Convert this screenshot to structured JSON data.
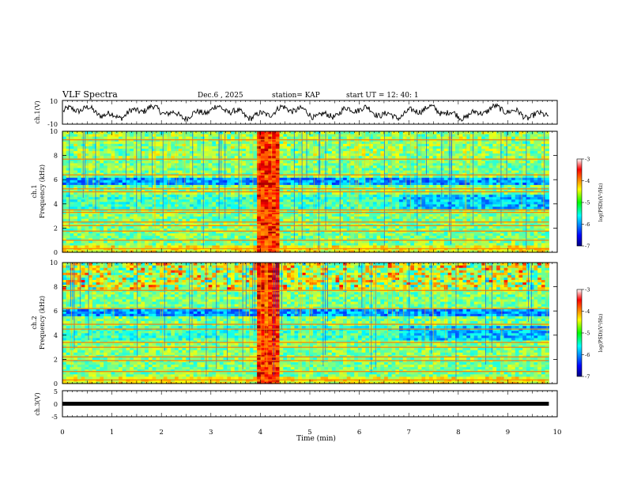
{
  "header": {
    "title": "VLF Spectra",
    "date": "Dec.6 , 2025",
    "station": "station= KAP",
    "start_time": "start UT =  12: 40: 1"
  },
  "chart_data": [
    {
      "type": "line",
      "name": "ch1-waveform",
      "ylabel": "ch.1(V)",
      "ylim": [
        -10,
        10
      ],
      "y_tick_labels": [
        "10",
        "-10"
      ],
      "xlim": [
        0,
        10
      ],
      "data_end_min": 9.83,
      "description_of_series": "noisy broadband waveform oscillating roughly between -5 and 5 V"
    },
    {
      "type": "heatmap",
      "name": "ch1-spectrogram",
      "ylabel": "ch.1\nFrequency (kHz)",
      "ylim": [
        0,
        10
      ],
      "y_ticks": [
        0,
        2,
        4,
        6,
        8,
        10
      ],
      "xlim": [
        0,
        10
      ],
      "data_end_min": 9.83,
      "colorbar": {
        "label": "log(PSD)(V²/Hz)",
        "range": [
          -7,
          -3
        ],
        "ticks": [
          -3,
          -4,
          -5,
          -6,
          -7
        ]
      },
      "bands_khz": [
        0.3,
        1.0,
        1.75,
        2.2,
        2.5,
        3.3,
        3.5,
        5.0,
        5.25,
        6.4,
        7.7,
        9.3
      ],
      "burst_min": [
        4.0,
        4.35
      ]
    },
    {
      "type": "heatmap",
      "name": "ch2-spectrogram",
      "ylabel": "ch.2\nFrequency (kHz)",
      "ylim": [
        0,
        10
      ],
      "y_ticks": [
        0,
        2,
        4,
        6,
        8,
        10
      ],
      "xlim": [
        0,
        10
      ],
      "data_end_min": 9.83,
      "colorbar": {
        "label": "log(PSD)(V²/Hz)",
        "range": [
          -7,
          -3
        ],
        "ticks": [
          -3,
          -4,
          -5,
          -6,
          -7
        ]
      },
      "bands_khz": [
        0.3,
        1.0,
        1.9,
        2.2,
        3.0,
        3.4,
        4.5,
        4.9,
        6.2,
        7.7
      ],
      "burst_min": [
        4.0,
        4.35
      ]
    },
    {
      "type": "line",
      "name": "ch3-waveform",
      "ylabel": "ch.3(V)",
      "ylim": [
        -5,
        5
      ],
      "y_tick_labels": [
        "5",
        "0",
        "-5"
      ],
      "xlim": [
        0,
        10
      ],
      "data_end_min": 9.83,
      "description_of_series": "thick flat trace near 0 V"
    },
    {
      "type": "axis",
      "name": "time-axis",
      "xlabel": "Time (min)",
      "x_ticks": [
        0,
        1,
        2,
        3,
        4,
        5,
        6,
        7,
        8,
        9,
        10
      ]
    }
  ],
  "colors": {
    "background": "#ffffff",
    "ink": "#000000"
  }
}
